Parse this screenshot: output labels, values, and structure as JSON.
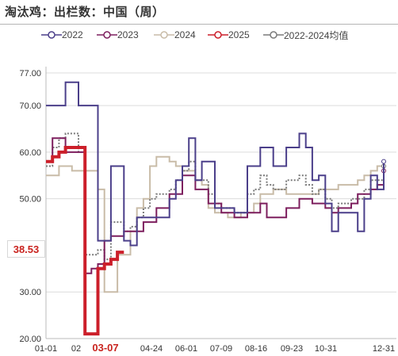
{
  "title": "淘汰鸡：出栏数：中国（周）",
  "watermark": "",
  "highlight_marker": {
    "value_label": "38.53",
    "date_label": "03-07"
  },
  "chart_data": {
    "type": "line",
    "title": "淘汰鸡：出栏数：中国（周）",
    "xlabel": "",
    "ylabel": "",
    "ylim": [
      20,
      77
    ],
    "yticks": [
      "77.00",
      "70.00",
      "60.00",
      "50.00",
      "38.53",
      "30.00",
      "20.00"
    ],
    "xticks": [
      "01-01",
      "02",
      "03-07",
      "04-24",
      "06-01",
      "07-09",
      "08-16",
      "09-23",
      "10-31",
      "12-31"
    ],
    "grid": true,
    "legend_position": "top",
    "series": [
      {
        "name": "2022",
        "color": "#4b3f8a",
        "style": "solid",
        "width": 2,
        "points": [
          [
            "01-01",
            70
          ],
          [
            "01-08",
            70
          ],
          [
            "01-15",
            70
          ],
          [
            "01-22",
            75
          ],
          [
            "01-29",
            75
          ],
          [
            "02-05",
            70
          ],
          [
            "02-12",
            70
          ],
          [
            "02-19",
            70
          ],
          [
            "02-26",
            41
          ],
          [
            "03-05",
            41
          ],
          [
            "03-12",
            57
          ],
          [
            "03-19",
            57
          ],
          [
            "03-26",
            41
          ],
          [
            "04-02",
            40
          ],
          [
            "04-09",
            46
          ],
          [
            "04-16",
            46
          ],
          [
            "04-23",
            46
          ],
          [
            "04-30",
            46
          ],
          [
            "05-07",
            46
          ],
          [
            "05-14",
            50
          ],
          [
            "05-21",
            54
          ],
          [
            "05-28",
            57
          ],
          [
            "06-01",
            57
          ],
          [
            "06-04",
            63
          ],
          [
            "06-11",
            54
          ],
          [
            "06-18",
            58
          ],
          [
            "06-25",
            58
          ],
          [
            "07-02",
            48
          ],
          [
            "07-09",
            48
          ],
          [
            "07-16",
            48
          ],
          [
            "07-23",
            47
          ],
          [
            "07-30",
            47
          ],
          [
            "08-06",
            57
          ],
          [
            "08-13",
            57
          ],
          [
            "08-20",
            61
          ],
          [
            "08-27",
            61
          ],
          [
            "09-03",
            57
          ],
          [
            "09-10",
            57
          ],
          [
            "09-17",
            61
          ],
          [
            "09-24",
            61
          ],
          [
            "10-01",
            64
          ],
          [
            "10-08",
            61
          ],
          [
            "10-15",
            54
          ],
          [
            "10-22",
            55
          ],
          [
            "10-29",
            49
          ],
          [
            "11-05",
            43
          ],
          [
            "11-12",
            47
          ],
          [
            "11-19",
            47
          ],
          [
            "11-26",
            47
          ],
          [
            "12-03",
            43
          ],
          [
            "12-10",
            50
          ],
          [
            "12-17",
            55
          ],
          [
            "12-24",
            52
          ],
          [
            "12-31",
            58
          ]
        ]
      },
      {
        "name": "2023",
        "color": "#7d1f5e",
        "style": "solid",
        "width": 2,
        "points": [
          [
            "01-01",
            58
          ],
          [
            "01-08",
            63
          ],
          [
            "01-15",
            63
          ],
          [
            "01-22",
            60
          ],
          [
            "01-29",
            60
          ],
          [
            "02-05",
            60
          ],
          [
            "02-12",
            34
          ],
          [
            "02-19",
            35
          ],
          [
            "02-26",
            36
          ],
          [
            "03-05",
            41
          ],
          [
            "03-12",
            42
          ],
          [
            "03-19",
            42
          ],
          [
            "03-26",
            43
          ],
          [
            "04-02",
            43
          ],
          [
            "04-09",
            43
          ],
          [
            "04-16",
            45
          ],
          [
            "04-23",
            45
          ],
          [
            "04-30",
            48
          ],
          [
            "05-07",
            48
          ],
          [
            "05-14",
            51
          ],
          [
            "05-21",
            51
          ],
          [
            "05-28",
            55
          ],
          [
            "06-04",
            55
          ],
          [
            "06-11",
            52
          ],
          [
            "06-18",
            52
          ],
          [
            "06-25",
            49
          ],
          [
            "07-02",
            49
          ],
          [
            "07-09",
            47
          ],
          [
            "07-16",
            47
          ],
          [
            "07-23",
            46
          ],
          [
            "07-30",
            46
          ],
          [
            "08-06",
            47
          ],
          [
            "08-13",
            47
          ],
          [
            "08-20",
            49
          ],
          [
            "08-27",
            46
          ],
          [
            "09-03",
            46
          ],
          [
            "09-10",
            46
          ],
          [
            "09-17",
            48
          ],
          [
            "09-24",
            48
          ],
          [
            "10-01",
            50
          ],
          [
            "10-08",
            50
          ],
          [
            "10-15",
            49
          ],
          [
            "10-22",
            49
          ],
          [
            "10-29",
            48
          ],
          [
            "11-05",
            47
          ],
          [
            "11-12",
            48
          ],
          [
            "11-19",
            48
          ],
          [
            "11-26",
            49
          ],
          [
            "12-03",
            51
          ],
          [
            "12-10",
            51
          ],
          [
            "12-17",
            52
          ],
          [
            "12-24",
            53
          ],
          [
            "12-31",
            56
          ]
        ]
      },
      {
        "name": "2024",
        "color": "#c9bca8",
        "style": "solid",
        "width": 2,
        "points": [
          [
            "01-01",
            55
          ],
          [
            "01-08",
            55
          ],
          [
            "01-15",
            57
          ],
          [
            "01-22",
            57
          ],
          [
            "01-29",
            56
          ],
          [
            "02-05",
            56
          ],
          [
            "02-12",
            56
          ],
          [
            "02-19",
            56
          ],
          [
            "02-26",
            52
          ],
          [
            "03-05",
            30
          ],
          [
            "03-12",
            30
          ],
          [
            "03-19",
            38
          ],
          [
            "03-26",
            38
          ],
          [
            "04-02",
            43
          ],
          [
            "04-09",
            48
          ],
          [
            "04-16",
            50
          ],
          [
            "04-23",
            57
          ],
          [
            "04-30",
            59
          ],
          [
            "05-07",
            59
          ],
          [
            "05-14",
            58
          ],
          [
            "05-21",
            57
          ],
          [
            "05-28",
            56
          ],
          [
            "06-04",
            56
          ],
          [
            "06-11",
            54
          ],
          [
            "06-18",
            53
          ],
          [
            "06-25",
            48
          ],
          [
            "07-02",
            47
          ],
          [
            "07-09",
            47
          ],
          [
            "07-16",
            46
          ],
          [
            "07-23",
            46
          ],
          [
            "07-30",
            47
          ],
          [
            "08-06",
            47
          ],
          [
            "08-13",
            49
          ],
          [
            "08-20",
            51
          ],
          [
            "08-27",
            51
          ],
          [
            "09-03",
            52
          ],
          [
            "09-10",
            52
          ],
          [
            "09-17",
            51
          ],
          [
            "09-24",
            51
          ],
          [
            "10-01",
            51
          ],
          [
            "10-08",
            51
          ],
          [
            "10-15",
            51
          ],
          [
            "10-22",
            52
          ],
          [
            "10-29",
            52
          ],
          [
            "11-05",
            52
          ],
          [
            "11-12",
            53
          ],
          [
            "11-19",
            53
          ],
          [
            "11-26",
            53
          ],
          [
            "12-03",
            54
          ],
          [
            "12-10",
            55
          ],
          [
            "12-17",
            56
          ],
          [
            "12-24",
            57
          ],
          [
            "12-31",
            57
          ]
        ]
      },
      {
        "name": "2025",
        "color": "#cc1f2a",
        "style": "solid",
        "width": 4,
        "points": [
          [
            "01-01",
            58
          ],
          [
            "01-08",
            59
          ],
          [
            "01-15",
            60
          ],
          [
            "01-22",
            61
          ],
          [
            "01-29",
            61
          ],
          [
            "02-05",
            61
          ],
          [
            "02-12",
            21
          ],
          [
            "02-19",
            21
          ],
          [
            "02-26",
            35
          ],
          [
            "03-05",
            36
          ],
          [
            "03-12",
            37
          ],
          [
            "03-19",
            38.53
          ],
          [
            "03-26",
            38.53
          ]
        ]
      },
      {
        "name": "2022-2024均值",
        "color": "#7a7a7a",
        "style": "dotted",
        "width": 2,
        "points": [
          [
            "01-01",
            57
          ],
          [
            "01-08",
            61
          ],
          [
            "01-15",
            63
          ],
          [
            "01-22",
            64
          ],
          [
            "01-29",
            64
          ],
          [
            "02-05",
            60
          ],
          [
            "02-12",
            38
          ],
          [
            "02-19",
            38
          ],
          [
            "02-26",
            39
          ],
          [
            "03-05",
            37
          ],
          [
            "03-12",
            45
          ],
          [
            "03-19",
            45
          ],
          [
            "03-26",
            43
          ],
          [
            "04-02",
            44
          ],
          [
            "04-09",
            46
          ],
          [
            "04-16",
            48
          ],
          [
            "04-23",
            50
          ],
          [
            "04-30",
            51
          ],
          [
            "05-07",
            51
          ],
          [
            "05-14",
            52
          ],
          [
            "05-21",
            54
          ],
          [
            "05-28",
            56
          ],
          [
            "06-04",
            58
          ],
          [
            "06-11",
            54
          ],
          [
            "06-18",
            54
          ],
          [
            "06-25",
            51
          ],
          [
            "07-02",
            49
          ],
          [
            "07-09",
            48
          ],
          [
            "07-16",
            48
          ],
          [
            "07-23",
            47
          ],
          [
            "07-30",
            47
          ],
          [
            "08-06",
            51
          ],
          [
            "08-13",
            52
          ],
          [
            "08-20",
            55
          ],
          [
            "08-27",
            53
          ],
          [
            "09-03",
            52
          ],
          [
            "09-10",
            52
          ],
          [
            "09-17",
            54
          ],
          [
            "09-24",
            54
          ],
          [
            "10-01",
            55
          ],
          [
            "10-08",
            53
          ],
          [
            "10-15",
            51
          ],
          [
            "10-22",
            52
          ],
          [
            "10-29",
            50
          ],
          [
            "11-05",
            48
          ],
          [
            "11-12",
            49
          ],
          [
            "11-19",
            49
          ],
          [
            "11-26",
            50
          ],
          [
            "12-03",
            50
          ],
          [
            "12-10",
            52
          ],
          [
            "12-17",
            54
          ],
          [
            "12-24",
            54
          ],
          [
            "12-31",
            57
          ]
        ]
      }
    ]
  }
}
